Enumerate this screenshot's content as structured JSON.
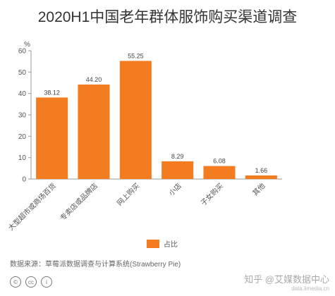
{
  "chart_data": {
    "type": "bar",
    "title": "2020H1中国老年群体服饰购买渠道调查",
    "ylabel": "%",
    "ylim": [
      0,
      60
    ],
    "yticks": [
      0,
      10,
      20,
      30,
      40,
      50,
      60
    ],
    "categories": [
      "大型超市或商场百货",
      "专卖店或品牌店",
      "网上购买",
      "小店",
      "子女购买",
      "其他"
    ],
    "values": [
      38.12,
      44.2,
      55.25,
      8.29,
      6.08,
      1.66
    ],
    "value_labels": [
      "38.12",
      "44.20",
      "55.25",
      "8.29",
      "6.08",
      "1.66"
    ],
    "series": [
      {
        "name": "占比",
        "values": [
          38.12,
          44.2,
          55.25,
          8.29,
          6.08,
          1.66
        ],
        "color": "#f47c20"
      }
    ],
    "legend": "bottom-right",
    "grid": false
  },
  "source_text": "数据来源：草莓派数据调查与计算系统(Strawberry Pie)",
  "license_icons": [
    "cc-by-icon",
    "cc-icon",
    "person-icon"
  ],
  "watermark": {
    "text": "知乎 @艾媒数据中心",
    "sub": "data.iimedia.cn"
  }
}
